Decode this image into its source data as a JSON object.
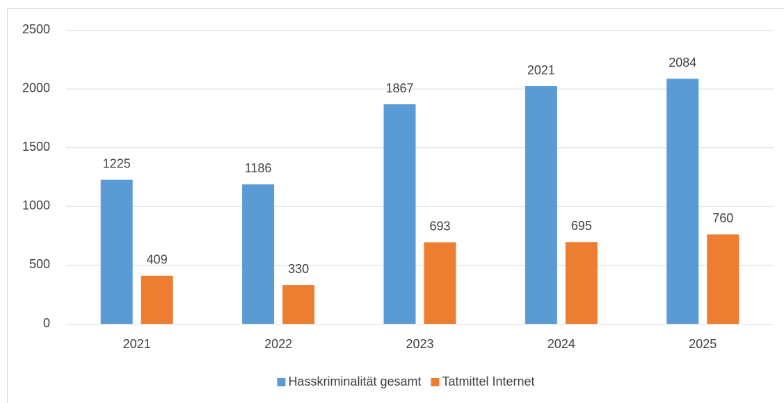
{
  "chart_data": {
    "type": "bar",
    "categories": [
      "2021",
      "2022",
      "2023",
      "2024",
      "2025"
    ],
    "series": [
      {
        "name": "Hasskriminalität gesamt",
        "color": "#5b9bd5",
        "values": [
          1225,
          1186,
          1867,
          2021,
          2084
        ]
      },
      {
        "name": "Tatmittel Internet",
        "color": "#ed7d31",
        "values": [
          409,
          330,
          693,
          695,
          760
        ]
      }
    ],
    "ylim": [
      0,
      2500
    ],
    "yticks": [
      0,
      500,
      1000,
      1500,
      2000,
      2500
    ],
    "grid": true,
    "legend": "bottom"
  }
}
